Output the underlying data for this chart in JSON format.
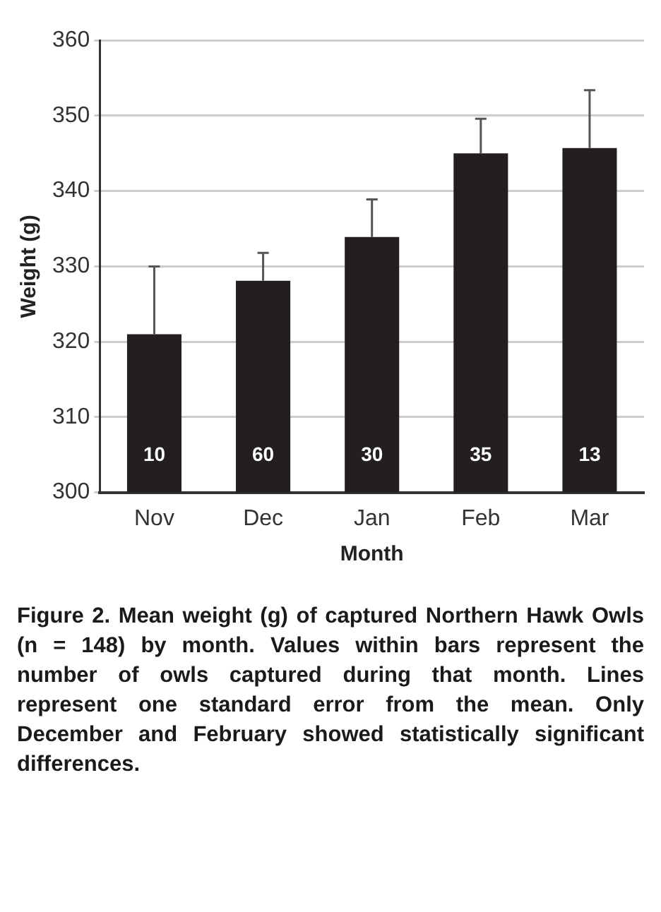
{
  "chart_data": {
    "type": "bar",
    "xlabel": "Month",
    "ylabel": "Weight (g)",
    "categories": [
      "Nov",
      "Dec",
      "Jan",
      "Feb",
      "Mar"
    ],
    "values": [
      321,
      328.1,
      333.9,
      345,
      345.7
    ],
    "errors": [
      [
        321,
        330
      ],
      [
        328.1,
        331.8
      ],
      [
        333.9,
        338.9
      ],
      [
        345,
        349.6
      ],
      [
        345.7,
        353.4
      ]
    ],
    "color": "#231f20",
    "ylim": [
      300,
      360
    ],
    "yticks": [
      300,
      310,
      320,
      330,
      340,
      350,
      360
    ],
    "grid": "y",
    "annotations": [
      "10",
      "60",
      "30",
      "35",
      "13",
      "Figure 2. Mean weight (g) of captured Northern Hawk Owls (n = 148) by month. Values within bars represent the number of owls captured during that month. Lines represent one standard error from the mean. Only December and February showed statistically significant differences."
    ]
  }
}
